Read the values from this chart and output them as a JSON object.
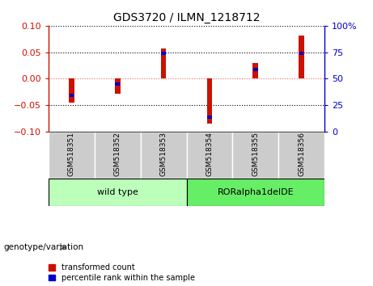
{
  "title": "GDS3720 / ILMN_1218712",
  "samples": [
    "GSM518351",
    "GSM518352",
    "GSM518353",
    "GSM518354",
    "GSM518355",
    "GSM518356"
  ],
  "red_values": [
    -0.045,
    -0.028,
    0.057,
    -0.085,
    0.03,
    0.082
  ],
  "blue_values": [
    -0.032,
    -0.01,
    0.048,
    -0.072,
    0.018,
    0.048
  ],
  "ylim": [
    -0.1,
    0.1
  ],
  "yticks_left": [
    -0.1,
    -0.05,
    0,
    0.05,
    0.1
  ],
  "yticks_right": [
    0,
    25,
    50,
    75,
    100
  ],
  "tick_bg_color": "#cccccc",
  "bar_width": 0.12,
  "blue_bar_height": 0.006,
  "blue_bar_width": 0.1,
  "red_color": "#cc1100",
  "blue_color": "#0000cc",
  "zero_line_color": "#ff6666",
  "grid_color": "#000000",
  "title_color": "#000000",
  "left_axis_color": "#cc1100",
  "right_axis_color": "#0000cc",
  "legend_red_label": "transformed count",
  "legend_blue_label": "percentile rank within the sample",
  "genotype_label": "genotype/variation",
  "wt_color": "#bbffbb",
  "ror_color": "#66ee66"
}
